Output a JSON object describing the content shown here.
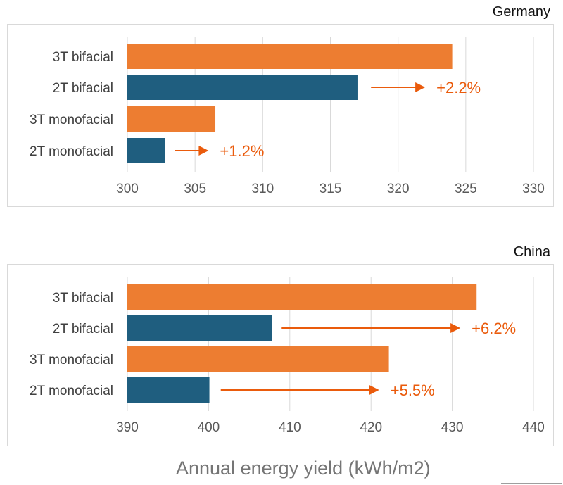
{
  "colors": {
    "orange": "#ED7D31",
    "blue": "#1F5E7F",
    "grid": "#d9d9d9",
    "tick": "#595959",
    "annotation": "#EA5B0C"
  },
  "x_axis_title": "Annual energy yield (kWh/m2)",
  "chart_data": [
    {
      "type": "bar",
      "orientation": "horizontal",
      "title": "Germany",
      "categories": [
        "3T bifacial",
        "2T bifacial",
        "3T monofacial",
        "2T monofacial"
      ],
      "values": [
        324,
        317,
        306.5,
        302.8
      ],
      "bar_colors": [
        "orange",
        "blue",
        "orange",
        "blue"
      ],
      "xlim": [
        300,
        330
      ],
      "xticks": [
        300,
        305,
        310,
        315,
        320,
        325,
        330
      ],
      "grid": true,
      "annotations": [
        {
          "category": "2T bifacial",
          "text": "+2.2%",
          "arrow_from": 318,
          "arrow_to": 322
        },
        {
          "category": "2T monofacial",
          "text": "+1.2%",
          "arrow_from": 303.5,
          "arrow_to": 306
        }
      ]
    },
    {
      "type": "bar",
      "orientation": "horizontal",
      "title": "China",
      "categories": [
        "3T bifacial",
        "2T bifacial",
        "3T monofacial",
        "2T monofacial"
      ],
      "values": [
        433,
        407.8,
        422.2,
        400.1
      ],
      "bar_colors": [
        "orange",
        "blue",
        "orange",
        "blue"
      ],
      "xlim": [
        390,
        440
      ],
      "xticks": [
        390,
        400,
        410,
        420,
        430,
        440
      ],
      "grid": true,
      "annotations": [
        {
          "category": "2T bifacial",
          "text": "+6.2%",
          "arrow_from": 409,
          "arrow_to": 431
        },
        {
          "category": "2T monofacial",
          "text": "+5.5%",
          "arrow_from": 401.5,
          "arrow_to": 421
        }
      ]
    }
  ]
}
